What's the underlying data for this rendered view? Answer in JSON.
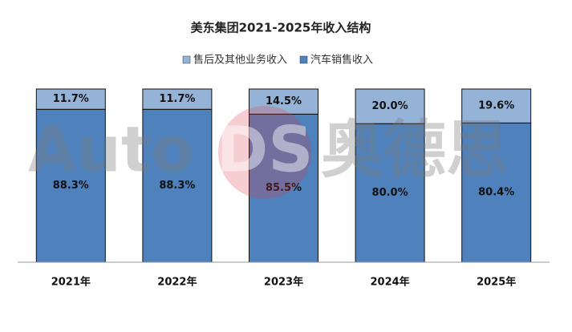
{
  "chart_data": {
    "type": "stacked_bar",
    "title": "美东集团2021-2025年收入结构",
    "watermark": [
      "Auto",
      "DS",
      "奥德思"
    ],
    "categories": [
      "2021年",
      "2022年",
      "2023年",
      "2024年",
      "2025年"
    ],
    "series": [
      {
        "name": "售后及其他业务收入",
        "color": "#95b3d7",
        "values": [
          11.7,
          11.7,
          14.5,
          20.0,
          19.6
        ],
        "value_labels": [
          "11.7%",
          "11.7%",
          "14.5%",
          "20.0%",
          "19.6%"
        ]
      },
      {
        "name": "汽车销售收入",
        "color": "#4f81bd",
        "values": [
          88.3,
          88.3,
          85.5,
          80.0,
          80.4
        ],
        "value_labels": [
          "88.3%",
          "88.3%",
          "85.5%",
          "80.0%",
          "80.4%"
        ]
      }
    ],
    "ylim": [
      0,
      100
    ]
  }
}
